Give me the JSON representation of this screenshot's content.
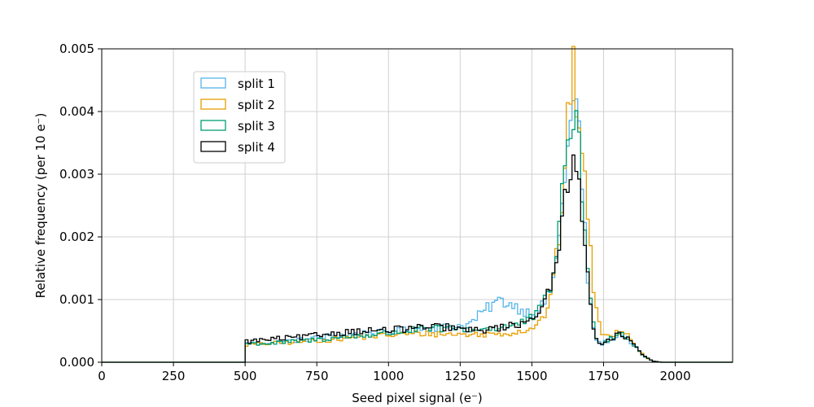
{
  "chart_data": {
    "type": "histogram-step",
    "xlabel": "Seed pixel signal (e⁻)",
    "ylabel": "Relative frequency (per 10 e⁻)",
    "xlim": [
      0,
      2200
    ],
    "ylim": [
      0,
      0.005
    ],
    "xticks": [
      0,
      250,
      500,
      750,
      1000,
      1250,
      1500,
      1750,
      2000
    ],
    "yticks": [
      0.0,
      0.001,
      0.002,
      0.003,
      0.004,
      0.005
    ],
    "xtick_labels": [
      "0",
      "250",
      "500",
      "750",
      "1000",
      "1250",
      "1500",
      "1750",
      "2000"
    ],
    "ytick_labels": [
      "0.000",
      "0.001",
      "0.002",
      "0.003",
      "0.004",
      "0.005"
    ],
    "grid": true,
    "legend_position": "upper-left",
    "bin_width": 10,
    "series": [
      {
        "name": "split 1",
        "color": "#56B4E9",
        "profile": [
          [
            0,
            0
          ],
          [
            495,
            0
          ],
          [
            500,
            0.0003
          ],
          [
            600,
            0.00032
          ],
          [
            700,
            0.00036
          ],
          [
            800,
            0.00042
          ],
          [
            900,
            0.00046
          ],
          [
            1000,
            0.00048
          ],
          [
            1100,
            0.00053
          ],
          [
            1200,
            0.00056
          ],
          [
            1280,
            0.0006
          ],
          [
            1330,
            0.0008
          ],
          [
            1370,
            0.00095
          ],
          [
            1400,
            0.00098
          ],
          [
            1440,
            0.0009
          ],
          [
            1480,
            0.0008
          ],
          [
            1520,
            0.0008
          ],
          [
            1560,
            0.00105
          ],
          [
            1590,
            0.0017
          ],
          [
            1610,
            0.0028
          ],
          [
            1630,
            0.0037
          ],
          [
            1645,
            0.004
          ],
          [
            1655,
            0.0041
          ],
          [
            1665,
            0.0037
          ],
          [
            1680,
            0.0024
          ],
          [
            1700,
            0.001
          ],
          [
            1720,
            0.0004
          ],
          [
            1740,
            0.00028
          ],
          [
            1760,
            0.00033
          ],
          [
            1790,
            0.0004
          ],
          [
            1810,
            0.00044
          ],
          [
            1830,
            0.0004
          ],
          [
            1860,
            0.00025
          ],
          [
            1890,
            0.0001
          ],
          [
            1920,
            2e-05
          ],
          [
            1950,
            0
          ],
          [
            2200,
            0
          ]
        ]
      },
      {
        "name": "split 2",
        "color": "#E69F00",
        "profile": [
          [
            0,
            0
          ],
          [
            495,
            0
          ],
          [
            500,
            0.00028
          ],
          [
            600,
            0.0003
          ],
          [
            700,
            0.00033
          ],
          [
            800,
            0.00036
          ],
          [
            900,
            0.0004
          ],
          [
            1000,
            0.00043
          ],
          [
            1100,
            0.00046
          ],
          [
            1200,
            0.00045
          ],
          [
            1300,
            0.00044
          ],
          [
            1400,
            0.00046
          ],
          [
            1450,
            0.00048
          ],
          [
            1500,
            0.00055
          ],
          [
            1540,
            0.0007
          ],
          [
            1570,
            0.0011
          ],
          [
            1600,
            0.0022
          ],
          [
            1620,
            0.0035
          ],
          [
            1635,
            0.0042
          ],
          [
            1645,
            0.0046
          ],
          [
            1655,
            0.0043
          ],
          [
            1670,
            0.0038
          ],
          [
            1690,
            0.0026
          ],
          [
            1710,
            0.0014
          ],
          [
            1730,
            0.00065
          ],
          [
            1750,
            0.00042
          ],
          [
            1770,
            0.00043
          ],
          [
            1800,
            0.00048
          ],
          [
            1815,
            0.00054
          ],
          [
            1835,
            0.00045
          ],
          [
            1860,
            0.00028
          ],
          [
            1890,
            0.0001
          ],
          [
            1920,
            2e-05
          ],
          [
            1950,
            0
          ],
          [
            2200,
            0
          ]
        ]
      },
      {
        "name": "split 3",
        "color": "#009E73",
        "profile": [
          [
            0,
            0
          ],
          [
            495,
            0
          ],
          [
            500,
            0.0003
          ],
          [
            600,
            0.0003
          ],
          [
            700,
            0.00034
          ],
          [
            800,
            0.00038
          ],
          [
            900,
            0.00042
          ],
          [
            1000,
            0.00046
          ],
          [
            1100,
            0.00052
          ],
          [
            1200,
            0.00054
          ],
          [
            1300,
            0.00052
          ],
          [
            1400,
            0.00056
          ],
          [
            1450,
            0.0006
          ],
          [
            1500,
            0.0007
          ],
          [
            1540,
            0.0009
          ],
          [
            1570,
            0.0013
          ],
          [
            1600,
            0.0023
          ],
          [
            1620,
            0.0034
          ],
          [
            1640,
            0.0039
          ],
          [
            1650,
            0.0041
          ],
          [
            1660,
            0.0038
          ],
          [
            1680,
            0.0024
          ],
          [
            1700,
            0.0011
          ],
          [
            1720,
            0.00045
          ],
          [
            1740,
            0.0003
          ],
          [
            1760,
            0.00035
          ],
          [
            1790,
            0.00043
          ],
          [
            1810,
            0.00047
          ],
          [
            1830,
            0.00042
          ],
          [
            1860,
            0.00026
          ],
          [
            1890,
            0.0001
          ],
          [
            1920,
            2e-05
          ],
          [
            1950,
            0
          ],
          [
            2200,
            0
          ]
        ]
      },
      {
        "name": "split 4",
        "color": "#000000",
        "profile": [
          [
            0,
            0
          ],
          [
            495,
            0
          ],
          [
            500,
            0.00033
          ],
          [
            600,
            0.00037
          ],
          [
            700,
            0.0004
          ],
          [
            800,
            0.00046
          ],
          [
            900,
            0.0005
          ],
          [
            1000,
            0.00051
          ],
          [
            1100,
            0.00055
          ],
          [
            1200,
            0.00056
          ],
          [
            1300,
            0.0005
          ],
          [
            1400,
            0.00056
          ],
          [
            1450,
            0.0006
          ],
          [
            1500,
            0.00072
          ],
          [
            1540,
            0.0009
          ],
          [
            1570,
            0.0012
          ],
          [
            1600,
            0.002
          ],
          [
            1620,
            0.0029
          ],
          [
            1640,
            0.0033
          ],
          [
            1650,
            0.00345
          ],
          [
            1660,
            0.0033
          ],
          [
            1680,
            0.0022
          ],
          [
            1700,
            0.001
          ],
          [
            1720,
            0.0004
          ],
          [
            1740,
            0.0003
          ],
          [
            1760,
            0.00035
          ],
          [
            1790,
            0.00042
          ],
          [
            1810,
            0.00044
          ],
          [
            1830,
            0.0004
          ],
          [
            1860,
            0.00025
          ],
          [
            1890,
            0.0001
          ],
          [
            1920,
            2e-05
          ],
          [
            1950,
            0
          ],
          [
            2200,
            0
          ]
        ]
      }
    ]
  }
}
